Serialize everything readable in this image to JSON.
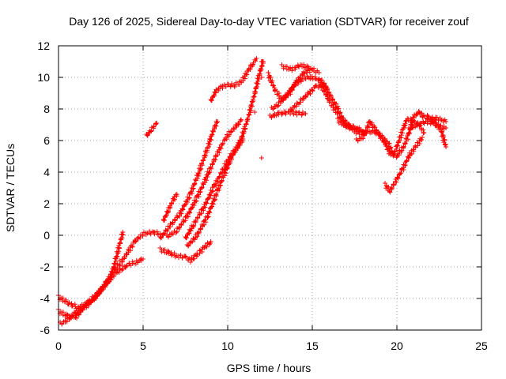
{
  "chart_data": {
    "type": "scatter",
    "title": "Day 126 of 2025, Sidereal Day-to-day VTEC variation (SDTVAR) for receiver zouf",
    "xlabel": "GPS time / hours",
    "ylabel": "SDTVAR / TECUs",
    "xlim": [
      0,
      25
    ],
    "ylim": [
      -6,
      12
    ],
    "xticks": [
      0,
      5,
      10,
      15,
      20,
      25
    ],
    "yticks": [
      -6,
      -4,
      -2,
      0,
      2,
      4,
      6,
      8,
      10,
      12
    ],
    "x_tick_labels": [
      "0",
      "5",
      "10",
      "15",
      "20",
      "25"
    ],
    "y_tick_labels": [
      "-6",
      "-4",
      "-2",
      "0",
      "2",
      "4",
      "6",
      "8",
      "10",
      "12"
    ],
    "grid": true,
    "marker": "+",
    "color": "#ff0000",
    "tracks": [
      [
        [
          0.0,
          -3.9
        ],
        [
          0.6,
          -4.3
        ],
        [
          1.2,
          -4.6
        ],
        [
          1.8,
          -4.2
        ],
        [
          2.4,
          -3.6
        ],
        [
          3.0,
          -2.9
        ],
        [
          3.4,
          -1.5
        ],
        [
          3.8,
          0.2
        ]
      ],
      [
        [
          0.0,
          -4.8
        ],
        [
          0.5,
          -5.1
        ],
        [
          1.0,
          -5.2
        ],
        [
          1.5,
          -4.6
        ],
        [
          2.1,
          -4.0
        ],
        [
          2.7,
          -3.2
        ],
        [
          3.3,
          -2.2
        ],
        [
          3.9,
          -1.4
        ],
        [
          4.5,
          -0.4
        ],
        [
          5.0,
          0.1
        ],
        [
          5.6,
          0.2
        ],
        [
          6.0,
          0.1
        ]
      ],
      [
        [
          0.1,
          -5.6
        ],
        [
          0.5,
          -5.4
        ],
        [
          1.0,
          -4.9
        ],
        [
          1.6,
          -4.5
        ],
        [
          2.2,
          -3.9
        ],
        [
          2.8,
          -3.0
        ],
        [
          3.4,
          -2.4
        ],
        [
          4.0,
          -1.9
        ],
        [
          4.6,
          -1.7
        ],
        [
          5.0,
          -1.5
        ]
      ],
      [
        [
          5.2,
          6.3
        ],
        [
          5.5,
          6.7
        ],
        [
          5.8,
          7.1
        ]
      ],
      [
        [
          6.0,
          -0.2
        ],
        [
          6.6,
          0.6
        ],
        [
          7.2,
          1.4
        ],
        [
          7.8,
          2.6
        ],
        [
          8.3,
          4.0
        ],
        [
          8.8,
          5.5
        ],
        [
          9.2,
          6.8
        ],
        [
          9.4,
          7.2
        ]
      ],
      [
        [
          6.0,
          -0.9
        ],
        [
          6.5,
          -1.1
        ],
        [
          7.0,
          -1.3
        ],
        [
          7.5,
          -1.4
        ],
        [
          7.8,
          -1.6
        ],
        [
          8.2,
          -1.2
        ],
        [
          8.6,
          -0.8
        ],
        [
          9.0,
          -0.4
        ]
      ],
      [
        [
          6.2,
          0.9
        ],
        [
          6.5,
          1.6
        ],
        [
          6.8,
          2.3
        ],
        [
          7.0,
          2.6
        ]
      ],
      [
        [
          6.4,
          -0.1
        ],
        [
          7.0,
          0.3
        ],
        [
          7.6,
          1.2
        ],
        [
          8.2,
          2.4
        ],
        [
          8.8,
          3.8
        ],
        [
          9.3,
          5.0
        ],
        [
          9.8,
          6.0
        ],
        [
          10.2,
          6.6
        ],
        [
          10.6,
          7.0
        ],
        [
          10.8,
          7.3
        ]
      ],
      [
        [
          7.5,
          -0.2
        ],
        [
          8.0,
          0.7
        ],
        [
          8.6,
          1.8
        ],
        [
          9.2,
          3.1
        ],
        [
          9.8,
          4.3
        ],
        [
          10.2,
          5.1
        ],
        [
          10.6,
          5.6
        ],
        [
          10.9,
          6.1
        ]
      ],
      [
        [
          7.6,
          -0.7
        ],
        [
          8.2,
          0.0
        ],
        [
          8.8,
          1.2
        ],
        [
          9.4,
          2.8
        ],
        [
          10.0,
          4.4
        ],
        [
          10.4,
          5.3
        ],
        [
          10.8,
          6.1
        ],
        [
          11.2,
          7.4
        ],
        [
          11.6,
          9.0
        ],
        [
          11.9,
          10.3
        ],
        [
          12.1,
          11.0
        ]
      ],
      [
        [
          9.0,
          8.5
        ],
        [
          9.3,
          9.1
        ],
        [
          9.6,
          9.4
        ],
        [
          10.0,
          9.5
        ],
        [
          10.4,
          9.5
        ],
        [
          10.8,
          9.7
        ],
        [
          11.2,
          10.4
        ],
        [
          11.5,
          10.9
        ],
        [
          11.7,
          11.2
        ]
      ],
      [
        [
          12.4,
          10.2
        ],
        [
          12.8,
          9.2
        ],
        [
          13.2,
          8.6
        ],
        [
          13.6,
          8.9
        ],
        [
          14.0,
          9.6
        ],
        [
          14.5,
          10.3
        ],
        [
          15.0,
          10.5
        ],
        [
          15.4,
          10.3
        ]
      ],
      [
        [
          12.5,
          7.5
        ],
        [
          13.0,
          7.7
        ],
        [
          13.6,
          7.8
        ],
        [
          14.2,
          7.7
        ],
        [
          14.6,
          7.7
        ]
      ],
      [
        [
          12.6,
          8.0
        ],
        [
          13.0,
          8.3
        ],
        [
          13.5,
          8.9
        ],
        [
          14.0,
          9.6
        ],
        [
          14.6,
          10.0
        ],
        [
          15.0,
          10.0
        ],
        [
          15.5,
          9.8
        ],
        [
          15.9,
          9.3
        ]
      ],
      [
        [
          13.2,
          10.7
        ],
        [
          13.8,
          10.5
        ],
        [
          14.3,
          10.8
        ],
        [
          14.8,
          10.6
        ]
      ],
      [
        [
          13.7,
          7.9
        ],
        [
          14.3,
          8.5
        ],
        [
          14.8,
          9.0
        ],
        [
          15.2,
          9.4
        ],
        [
          15.6,
          9.5
        ],
        [
          16.0,
          9.0
        ],
        [
          16.5,
          8.0
        ],
        [
          17.0,
          7.0
        ],
        [
          17.5,
          6.6
        ],
        [
          18.0,
          6.4
        ]
      ],
      [
        [
          15.5,
          9.6
        ],
        [
          16.0,
          8.5
        ],
        [
          16.6,
          7.5
        ],
        [
          17.2,
          6.9
        ],
        [
          17.8,
          6.7
        ]
      ],
      [
        [
          16.5,
          7.3
        ],
        [
          17.0,
          6.9
        ],
        [
          17.5,
          6.8
        ],
        [
          18.0,
          6.5
        ],
        [
          18.5,
          6.6
        ],
        [
          19.0,
          6.4
        ],
        [
          19.5,
          5.8
        ],
        [
          19.8,
          5.1
        ],
        [
          20.0,
          5.6
        ],
        [
          20.4,
          6.8
        ],
        [
          20.6,
          7.4
        ],
        [
          21.0,
          7.2
        ],
        [
          21.3,
          7.0
        ],
        [
          21.6,
          6.5
        ]
      ],
      [
        [
          17.6,
          6.0
        ],
        [
          18.0,
          6.2
        ],
        [
          18.4,
          7.2
        ],
        [
          18.8,
          6.6
        ],
        [
          19.2,
          6.0
        ],
        [
          19.6,
          5.2
        ],
        [
          20.0,
          5.0
        ],
        [
          20.4,
          5.6
        ],
        [
          20.7,
          6.4
        ],
        [
          21.0,
          7.5
        ],
        [
          21.3,
          7.8
        ],
        [
          21.6,
          7.5
        ],
        [
          22.0,
          7.4
        ],
        [
          22.4,
          7.4
        ],
        [
          22.9,
          7.2
        ]
      ],
      [
        [
          19.3,
          3.2
        ],
        [
          19.6,
          2.8
        ],
        [
          19.9,
          3.4
        ],
        [
          20.3,
          4.1
        ],
        [
          20.7,
          5.0
        ],
        [
          21.1,
          5.6
        ],
        [
          21.5,
          6.2
        ]
      ],
      [
        [
          20.7,
          6.7
        ],
        [
          21.2,
          7.0
        ],
        [
          21.7,
          7.2
        ],
        [
          22.1,
          7.1
        ],
        [
          22.5,
          6.9
        ],
        [
          22.9,
          6.8
        ]
      ],
      [
        [
          21.8,
          7.5
        ],
        [
          22.2,
          7.2
        ],
        [
          22.6,
          6.7
        ],
        [
          22.9,
          5.6
        ]
      ]
    ],
    "isolated_points": [
      [
        11.6,
        7.8
      ],
      [
        12.0,
        4.9
      ],
      [
        12.0,
        10.0
      ],
      [
        12.0,
        11.0
      ]
    ]
  }
}
